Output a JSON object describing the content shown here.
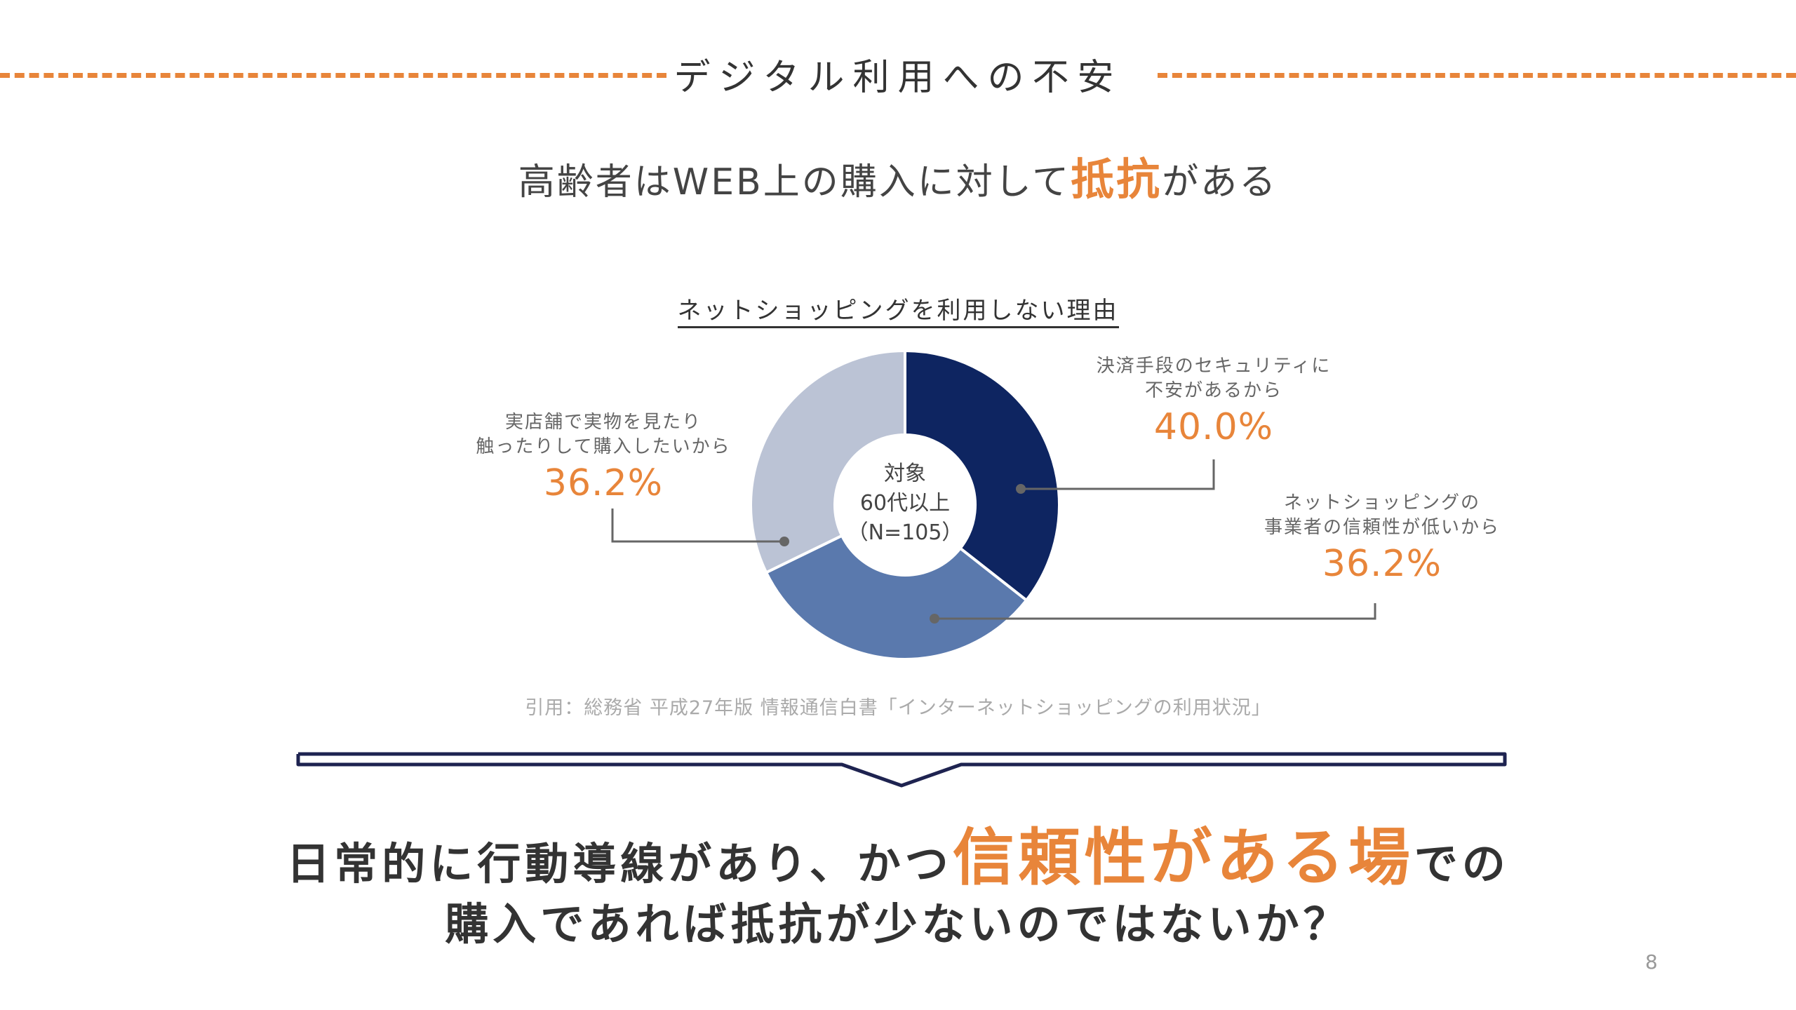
{
  "header": {
    "title": "デジタル利用への不安"
  },
  "subtitle": {
    "before": "高齢者はWEB上の購入に対して",
    "highlight": "抵抗",
    "after": "がある"
  },
  "chart_data": {
    "type": "pie",
    "title": "ネットショッピングを利用しない理由",
    "center_label": [
      "対象",
      "60代以上",
      "（N=105）"
    ],
    "series": [
      {
        "name": "決済手段のセキュリティに不安があるから",
        "label_lines": [
          "決済手段のセキュリティに",
          "不安があるから"
        ],
        "value": 40.0,
        "display": "40.0%",
        "color": "#0E2561"
      },
      {
        "name": "ネットショッピングの事業者の信頼性が低いから",
        "label_lines": [
          "ネットショッピングの",
          "事業者の信頼性が低いから"
        ],
        "value": 36.2,
        "display": "36.2%",
        "color": "#5A79AD"
      },
      {
        "name": "実店舗で実物を見たり触ったりして購入したいから",
        "label_lines": [
          "実店舗で実物を見たり",
          "触ったりして購入したいから"
        ],
        "value": 36.2,
        "display": "36.2%",
        "color": "#BBC3D5"
      }
    ]
  },
  "citation": "引用：総務省 平成27年版 情報通信白書「インターネットショッピングの利用状況」",
  "conclusion": {
    "line1_before": "日常的に行動導線があり、かつ",
    "line1_highlight": "信頼性がある場",
    "line1_after": "での",
    "line2": "購入であれば抵抗が少ないのではないか？"
  },
  "page_number": "8",
  "colors": {
    "accent": "#E8853A",
    "navy": "#1E2350"
  }
}
